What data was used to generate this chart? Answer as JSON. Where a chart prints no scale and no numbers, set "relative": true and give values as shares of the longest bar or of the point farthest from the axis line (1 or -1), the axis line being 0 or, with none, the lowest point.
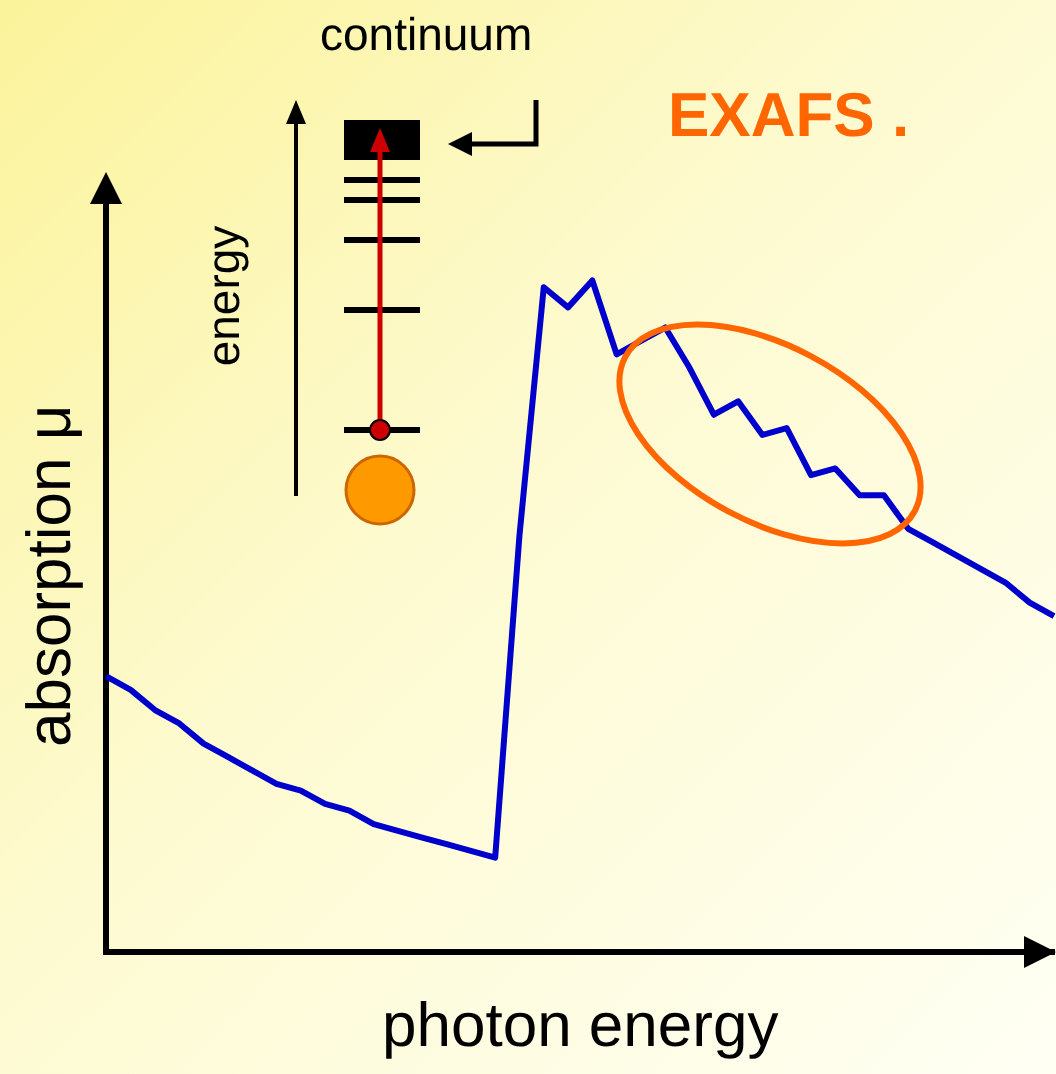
{
  "chart_data": {
    "type": "line",
    "relative": true,
    "xlabel": "photon energy",
    "ylabel": "absorption μ",
    "annotations": [
      "continuum",
      "energy",
      "EXAFS ."
    ],
    "categories": [
      null,
      null,
      null,
      null,
      null,
      null,
      null,
      null,
      null,
      null,
      null,
      null,
      null,
      null,
      null,
      null,
      null,
      null,
      null,
      null,
      null,
      null,
      null,
      null,
      null,
      null,
      null,
      null,
      null,
      null,
      null,
      null,
      null,
      null,
      null,
      null,
      null,
      null,
      null,
      null
    ],
    "series": [
      {
        "color": "#0000cc",
        "values": [
          0.41,
          0.39,
          0.36,
          0.34,
          0.31,
          0.29,
          0.27,
          0.25,
          0.24,
          0.22,
          0.21,
          0.19,
          0.18,
          0.17,
          0.16,
          0.15,
          0.14,
          0.62,
          0.99,
          0.96,
          1,
          0.89,
          0.91,
          0.93,
          0.87,
          0.8,
          0.82,
          0.77,
          0.78,
          0.71,
          0.72,
          0.68,
          0.68,
          0.63,
          0.61,
          0.59,
          0.57,
          0.55,
          0.52,
          0.5
        ]
      }
    ],
    "grid": false,
    "legend": false,
    "marker": "none",
    "line_style": "solid"
  }
}
